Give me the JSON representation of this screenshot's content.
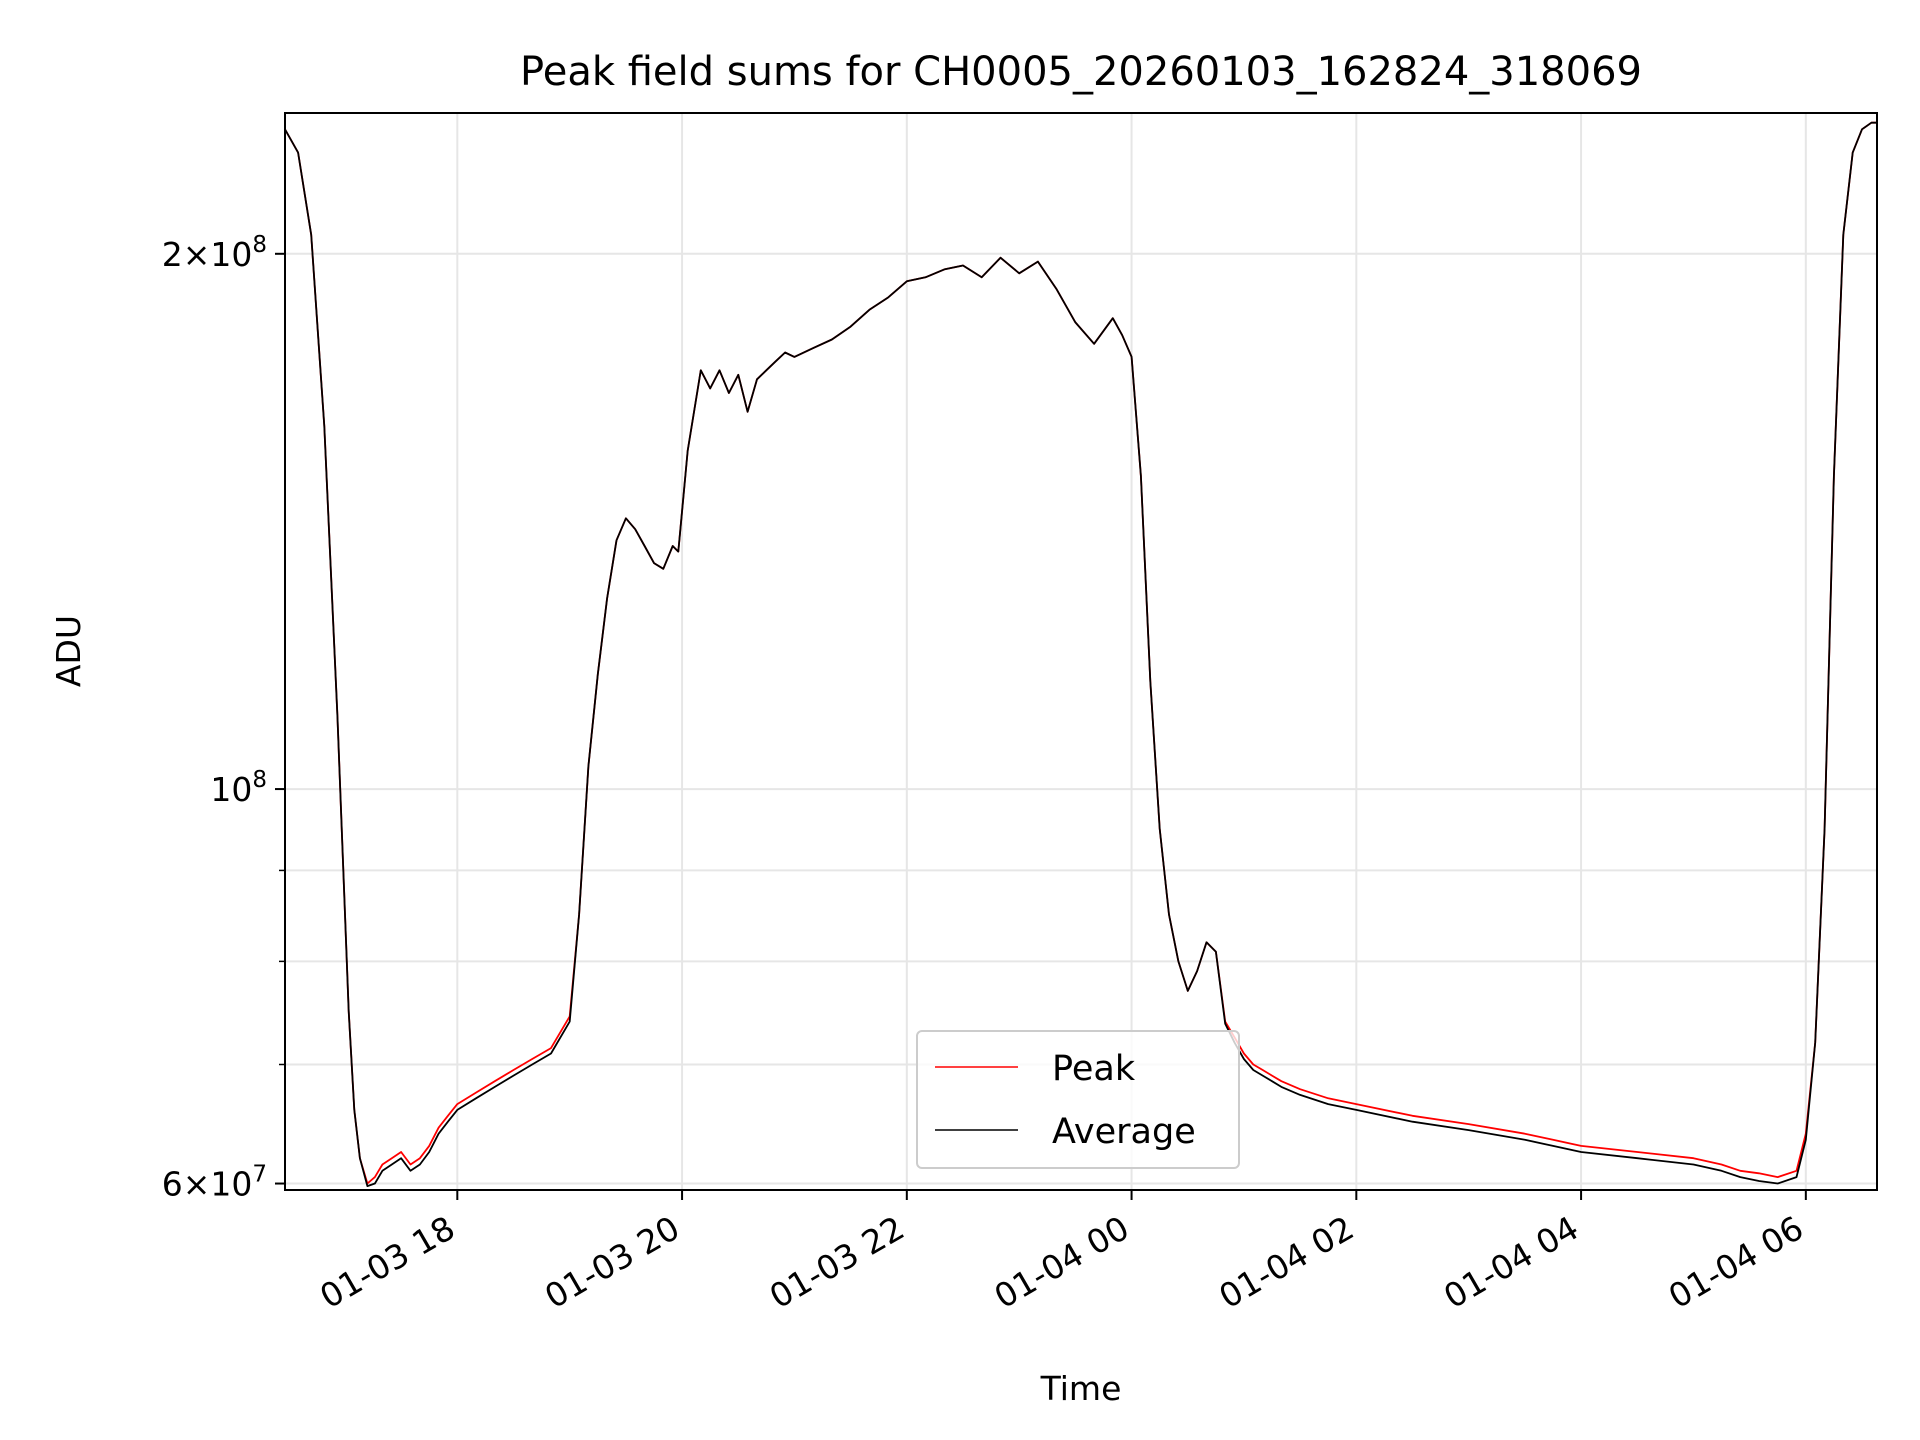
{
  "chart_data": {
    "type": "line",
    "title": "Peak field sums for CH0005_20260103_162824_318069",
    "xlabel": "Time",
    "ylabel": "ADU",
    "y_scale": "log",
    "ylim": [
      59500000,
      240000000
    ],
    "xlim": [
      "2026-01-03T16:28",
      "2026-01-04T06:38"
    ],
    "grid": true,
    "legend_position": "bottom-center",
    "x_ticks": [
      {
        "value": "2026-01-03T18:00",
        "label": "01-03 18"
      },
      {
        "value": "2026-01-03T20:00",
        "label": "01-03 20"
      },
      {
        "value": "2026-01-03T22:00",
        "label": "01-03 22"
      },
      {
        "value": "2026-01-04T00:00",
        "label": "01-04 00"
      },
      {
        "value": "2026-01-04T02:00",
        "label": "01-04 02"
      },
      {
        "value": "2026-01-04T04:00",
        "label": "01-04 04"
      },
      {
        "value": "2026-01-04T06:00",
        "label": "01-04 06"
      }
    ],
    "y_ticks": [
      {
        "value": 200000000,
        "base": "2",
        "exponent": "8"
      },
      {
        "value": 100000000,
        "base": "",
        "exponent": "8"
      },
      {
        "value": 60000000,
        "base": "6",
        "exponent": "7"
      }
    ],
    "y_minor_ticks": [
      70000000,
      80000000,
      90000000
    ],
    "x": [
      "2026-01-03T16:28",
      "2026-01-03T16:35",
      "2026-01-03T16:42",
      "2026-01-03T16:49",
      "2026-01-03T16:56",
      "2026-01-03T17:02",
      "2026-01-03T17:05",
      "2026-01-03T17:08",
      "2026-01-03T17:12",
      "2026-01-03T17:16",
      "2026-01-03T17:20",
      "2026-01-03T17:25",
      "2026-01-03T17:30",
      "2026-01-03T17:35",
      "2026-01-03T17:40",
      "2026-01-03T17:45",
      "2026-01-03T17:50",
      "2026-01-03T17:55",
      "2026-01-03T18:00",
      "2026-01-03T18:10",
      "2026-01-03T18:20",
      "2026-01-03T18:30",
      "2026-01-03T18:40",
      "2026-01-03T18:50",
      "2026-01-03T19:00",
      "2026-01-03T19:05",
      "2026-01-03T19:10",
      "2026-01-03T19:15",
      "2026-01-03T19:20",
      "2026-01-03T19:25",
      "2026-01-03T19:30",
      "2026-01-03T19:35",
      "2026-01-03T19:40",
      "2026-01-03T19:45",
      "2026-01-03T19:50",
      "2026-01-03T19:55",
      "2026-01-03T19:58",
      "2026-01-03T20:03",
      "2026-01-03T20:10",
      "2026-01-03T20:15",
      "2026-01-03T20:20",
      "2026-01-03T20:25",
      "2026-01-03T20:30",
      "2026-01-03T20:35",
      "2026-01-03T20:40",
      "2026-01-03T20:45",
      "2026-01-03T20:50",
      "2026-01-03T20:55",
      "2026-01-03T21:00",
      "2026-01-03T21:10",
      "2026-01-03T21:20",
      "2026-01-03T21:30",
      "2026-01-03T21:40",
      "2026-01-03T21:50",
      "2026-01-03T22:00",
      "2026-01-03T22:10",
      "2026-01-03T22:20",
      "2026-01-03T22:30",
      "2026-01-03T22:40",
      "2026-01-03T22:50",
      "2026-01-03T23:00",
      "2026-01-03T23:10",
      "2026-01-03T23:20",
      "2026-01-03T23:30",
      "2026-01-03T23:40",
      "2026-01-03T23:50",
      "2026-01-03T23:55",
      "2026-01-04T00:00",
      "2026-01-04T00:05",
      "2026-01-04T00:10",
      "2026-01-04T00:15",
      "2026-01-04T00:20",
      "2026-01-04T00:25",
      "2026-01-04T00:30",
      "2026-01-04T00:35",
      "2026-01-04T00:40",
      "2026-01-04T00:45",
      "2026-01-04T00:50",
      "2026-01-04T00:55",
      "2026-01-04T01:00",
      "2026-01-04T01:05",
      "2026-01-04T01:10",
      "2026-01-04T01:15",
      "2026-01-04T01:20",
      "2026-01-04T01:30",
      "2026-01-04T01:45",
      "2026-01-04T02:00",
      "2026-01-04T02:30",
      "2026-01-04T03:00",
      "2026-01-04T03:30",
      "2026-01-04T03:45",
      "2026-01-04T04:00",
      "2026-01-04T04:30",
      "2026-01-04T05:00",
      "2026-01-04T05:15",
      "2026-01-04T05:25",
      "2026-01-04T05:35",
      "2026-01-04T05:45",
      "2026-01-04T05:55",
      "2026-01-04T06:00",
      "2026-01-04T06:05",
      "2026-01-04T06:10",
      "2026-01-04T06:15",
      "2026-01-04T06:20",
      "2026-01-04T06:25",
      "2026-01-04T06:30",
      "2026-01-04T06:35",
      "2026-01-04T06:38"
    ],
    "series": [
      {
        "name": "Peak",
        "color": "#ff0000",
        "values": [
          235000000,
          228000000,
          205000000,
          160000000,
          110000000,
          75000000,
          66000000,
          62000000,
          60000000,
          60500000,
          61500000,
          62000000,
          62500000,
          61500000,
          62000000,
          63000000,
          64500000,
          65500000,
          66500000,
          67500000,
          68500000,
          69500000,
          70500000,
          71500000,
          74500000,
          85000000,
          103000000,
          116000000,
          128000000,
          138000000,
          142000000,
          140000000,
          137000000,
          134000000,
          133000000,
          137000000,
          136000000,
          155000000,
          172000000,
          168000000,
          172000000,
          167000000,
          171000000,
          163000000,
          170000000,
          172000000,
          174000000,
          176000000,
          175000000,
          177000000,
          179000000,
          182000000,
          186000000,
          189000000,
          193000000,
          194000000,
          196000000,
          197000000,
          194000000,
          199000000,
          195000000,
          198000000,
          191000000,
          183000000,
          178000000,
          184000000,
          180000000,
          175000000,
          150000000,
          115000000,
          95000000,
          85000000,
          80000000,
          77000000,
          79000000,
          82000000,
          81000000,
          74000000,
          72500000,
          71000000,
          70000000,
          69500000,
          69000000,
          68500000,
          67800000,
          67000000,
          66500000,
          65500000,
          64800000,
          64000000,
          63500000,
          63000000,
          62500000,
          62000000,
          61500000,
          61000000,
          60800000,
          60500000,
          61000000,
          64000000,
          72000000,
          95000000,
          150000000,
          205000000,
          228000000,
          235000000,
          237000000,
          237000000
        ]
      },
      {
        "name": "Average",
        "color": "#000000",
        "values": [
          235000000,
          228000000,
          205000000,
          160000000,
          110000000,
          75000000,
          66000000,
          62000000,
          59800000,
          60000000,
          61000000,
          61500000,
          62000000,
          61000000,
          61500000,
          62500000,
          64000000,
          65000000,
          66000000,
          67000000,
          68000000,
          69000000,
          70000000,
          71000000,
          74000000,
          85000000,
          103000000,
          116000000,
          128000000,
          138000000,
          142000000,
          140000000,
          137000000,
          134000000,
          133000000,
          137000000,
          136000000,
          155000000,
          172000000,
          168000000,
          172000000,
          167000000,
          171000000,
          163000000,
          170000000,
          172000000,
          174000000,
          176000000,
          175000000,
          177000000,
          179000000,
          182000000,
          186000000,
          189000000,
          193000000,
          194000000,
          196000000,
          197000000,
          194000000,
          199000000,
          195000000,
          198000000,
          191000000,
          183000000,
          178000000,
          184000000,
          180000000,
          175000000,
          150000000,
          115000000,
          95000000,
          85000000,
          80000000,
          77000000,
          79000000,
          82000000,
          81000000,
          73800000,
          72000000,
          70500000,
          69500000,
          69000000,
          68500000,
          68000000,
          67300000,
          66500000,
          66000000,
          65000000,
          64300000,
          63500000,
          63000000,
          62500000,
          62000000,
          61500000,
          61000000,
          60500000,
          60200000,
          60000000,
          60500000,
          63500000,
          72000000,
          95000000,
          150000000,
          205000000,
          228000000,
          235000000,
          237000000,
          237000000
        ]
      }
    ]
  }
}
